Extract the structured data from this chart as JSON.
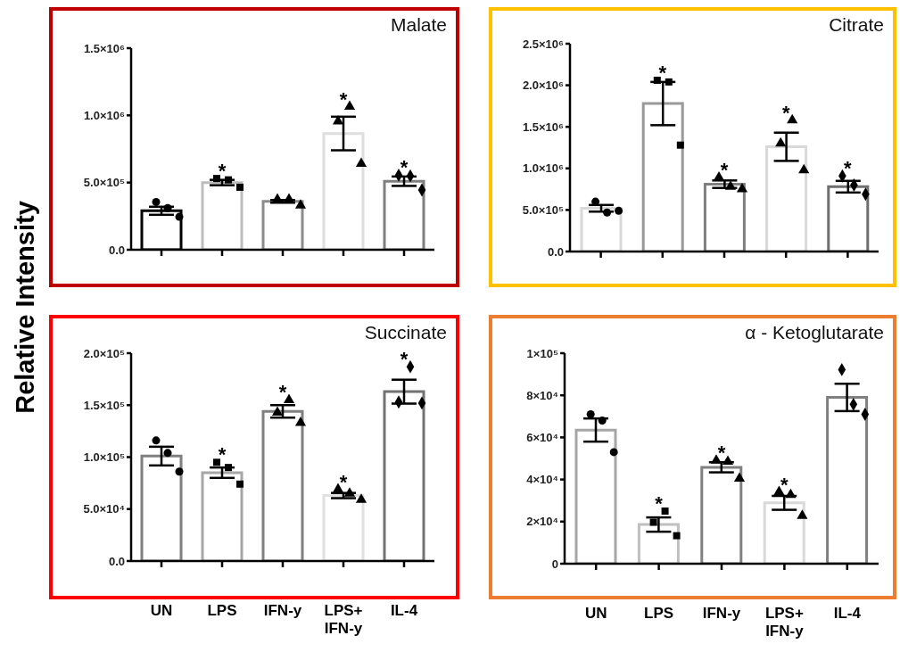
{
  "chart_data": [
    {
      "type": "bar",
      "title": "Malate",
      "ylabel": "Relative Intensity",
      "categories": [
        "UN",
        "LPS",
        "IFN-y",
        "LPS+ IFN-y",
        "IL-4"
      ],
      "tick_labels": "y",
      "ylim": [
        0,
        1500000
      ],
      "yticks": [
        {
          "value": 0,
          "label": "0.0"
        },
        {
          "value": 500000,
          "label": "5.0×10⁵"
        },
        {
          "value": 1000000,
          "label": "1.0×10⁶"
        },
        {
          "value": 1500000,
          "label": "1.5×10⁶"
        }
      ],
      "series": [
        {
          "type": "bar",
          "colors": [
            "#000000",
            "#bdbdbd",
            "#8c8c8c",
            "#dedede",
            "#7f7f7f"
          ],
          "values": [
            290000,
            500000,
            360000,
            865000,
            510000
          ],
          "errors": [
            30000,
            20000,
            10000,
            125000,
            35000
          ]
        },
        {
          "type": "scatter",
          "x": [
            "UN",
            "UN",
            "UN"
          ],
          "values": [
            355000,
            310000,
            245000
          ],
          "color": "#000000",
          "marker": "circle"
        },
        {
          "type": "scatter",
          "x": [
            "LPS",
            "LPS",
            "LPS"
          ],
          "values": [
            530000,
            520000,
            465000
          ],
          "color": "#000000",
          "marker": "square"
        },
        {
          "type": "scatter",
          "x": [
            "IFN-y",
            "IFN-y",
            "IFN-y"
          ],
          "values": [
            375000,
            375000,
            330000
          ],
          "color": "#000000",
          "marker": "triangle"
        },
        {
          "type": "scatter",
          "x": [
            "LPS+ IFN-y",
            "LPS+ IFN-y",
            "LPS+ IFN-y"
          ],
          "values": [
            955000,
            1065000,
            640000
          ],
          "color": "#000000",
          "marker": "triangle"
        },
        {
          "type": "scatter",
          "x": [
            "IL-4",
            "IL-4",
            "IL-4"
          ],
          "values": [
            555000,
            550000,
            445000
          ],
          "color": "#000000",
          "marker": "diamond"
        }
      ],
      "annotations": [
        {
          "text": "*",
          "x": "LPS",
          "y": 530000
        },
        {
          "text": "*",
          "x": "LPS+ IFN-y",
          "y": 1065000
        },
        {
          "text": "*",
          "x": "IL-4",
          "y": 555000
        }
      ]
    },
    {
      "type": "bar",
      "title": "Citrate",
      "categories": [
        "UN",
        "LPS",
        "IFN-y",
        "LPS+ IFN-y",
        "IL-4"
      ],
      "tick_labels": "y",
      "ylim": [
        0,
        2500000
      ],
      "yticks": [
        {
          "value": 0,
          "label": "0.0"
        },
        {
          "value": 500000,
          "label": "5.0×10⁵"
        },
        {
          "value": 1000000,
          "label": "1.0×10⁶"
        },
        {
          "value": 1500000,
          "label": "1.5×10⁶"
        },
        {
          "value": 2000000,
          "label": "2.0×10⁶"
        },
        {
          "value": 2500000,
          "label": "2.5×10⁶"
        }
      ],
      "series": [
        {
          "type": "bar",
          "colors": [
            "#d9d9d9",
            "#999999",
            "#7f7f7f",
            "#d9d9d9",
            "#6f6f6f"
          ],
          "values": [
            520000,
            1780000,
            810000,
            1260000,
            780000
          ],
          "errors": [
            40000,
            260000,
            45000,
            170000,
            70000
          ]
        },
        {
          "type": "scatter",
          "x": [
            "UN",
            "UN",
            "UN"
          ],
          "values": [
            600000,
            470000,
            490000
          ],
          "color": "#000000",
          "marker": "circle"
        },
        {
          "type": "scatter",
          "x": [
            "LPS",
            "LPS",
            "LPS"
          ],
          "values": [
            2060000,
            2040000,
            1280000
          ],
          "color": "#000000",
          "marker": "square"
        },
        {
          "type": "scatter",
          "x": [
            "IFN-y",
            "IFN-y",
            "IFN-y"
          ],
          "values": [
            890000,
            780000,
            750000
          ],
          "color": "#000000",
          "marker": "triangle"
        },
        {
          "type": "scatter",
          "x": [
            "LPS+ IFN-y",
            "LPS+ IFN-y",
            "LPS+ IFN-y"
          ],
          "values": [
            1300000,
            1580000,
            980000
          ],
          "color": "#000000",
          "marker": "triangle"
        },
        {
          "type": "scatter",
          "x": [
            "IL-4",
            "IL-4",
            "IL-4"
          ],
          "values": [
            910000,
            800000,
            690000
          ],
          "color": "#000000",
          "marker": "diamond"
        }
      ],
      "annotations": [
        {
          "text": "*",
          "x": "LPS",
          "y": 2060000
        },
        {
          "text": "*",
          "x": "IFN-y",
          "y": 890000
        },
        {
          "text": "*",
          "x": "LPS+ IFN-y",
          "y": 1580000
        },
        {
          "text": "*",
          "x": "IL-4",
          "y": 910000
        }
      ]
    },
    {
      "type": "bar",
      "title": "Succinate",
      "categories": [
        "UN",
        "LPS",
        "IFN-y",
        "LPS+ IFN-y",
        "IL-4"
      ],
      "ylim": [
        0,
        200000
      ],
      "yticks": [
        {
          "value": 0,
          "label": "0.0"
        },
        {
          "value": 50000,
          "label": "5.0×10⁴"
        },
        {
          "value": 100000,
          "label": "1.0×10⁵"
        },
        {
          "value": 150000,
          "label": "1.5×10⁵"
        },
        {
          "value": 200000,
          "label": "2.0×10⁵"
        }
      ],
      "series": [
        {
          "type": "bar",
          "colors": [
            "#808080",
            "#a6a6a6",
            "#808080",
            "#e0e0e0",
            "#737373"
          ],
          "values": [
            101000,
            85000,
            144000,
            63000,
            163000
          ],
          "errors": [
            9000,
            5000,
            6000,
            2500,
            11500
          ]
        },
        {
          "type": "scatter",
          "x": [
            "UN",
            "UN",
            "UN"
          ],
          "values": [
            116000,
            104000,
            86000
          ],
          "color": "#000000",
          "marker": "circle"
        },
        {
          "type": "scatter",
          "x": [
            "LPS",
            "LPS",
            "LPS"
          ],
          "values": [
            95000,
            90000,
            74000
          ],
          "color": "#000000",
          "marker": "square"
        },
        {
          "type": "scatter",
          "x": [
            "IFN-y",
            "IFN-y",
            "IFN-y"
          ],
          "values": [
            143000,
            155000,
            133000
          ],
          "color": "#000000",
          "marker": "triangle"
        },
        {
          "type": "scatter",
          "x": [
            "LPS+ IFN-y",
            "LPS+ IFN-y",
            "LPS+ IFN-y"
          ],
          "values": [
            69000,
            65000,
            59000
          ],
          "color": "#000000",
          "marker": "triangle"
        },
        {
          "type": "scatter",
          "x": [
            "IL-4",
            "IL-4",
            "IL-4"
          ],
          "values": [
            153000,
            187000,
            152000
          ],
          "color": "#000000",
          "marker": "diamond"
        }
      ],
      "annotations": [
        {
          "text": "*",
          "x": "LPS",
          "y": 95000
        },
        {
          "text": "*",
          "x": "IFN-y",
          "y": 155000
        },
        {
          "text": "*",
          "x": "LPS+ IFN-y",
          "y": 69000
        },
        {
          "text": "*",
          "x": "IL-4",
          "y": 187000
        }
      ]
    },
    {
      "type": "bar",
      "title": "α - Ketoglutarate",
      "categories": [
        "UN",
        "LPS",
        "IFN-y",
        "LPS+ IFN-y",
        "IL-4"
      ],
      "ylim": [
        0,
        100000
      ],
      "yticks": [
        0,
        {
          "value": 20000,
          "label": "2×10⁴"
        },
        {
          "value": 40000,
          "label": "4×10⁴"
        },
        {
          "value": 60000,
          "label": "6×10⁴"
        },
        {
          "value": 80000,
          "label": "8×10⁴"
        },
        {
          "value": 100000,
          "label": "1×10⁵"
        }
      ],
      "series": [
        {
          "type": "bar",
          "colors": [
            "#a6a6a6",
            "#bfbfbf",
            "#808080",
            "#d9d9d9",
            "#808080"
          ],
          "values": [
            63500,
            18600,
            45800,
            28900,
            79000
          ],
          "errors": [
            5500,
            3400,
            2400,
            3300,
            6500
          ]
        },
        {
          "type": "scatter",
          "x": [
            "UN",
            "UN",
            "UN"
          ],
          "values": [
            71000,
            68000,
            53000
          ],
          "color": "#000000",
          "marker": "circle"
        },
        {
          "type": "scatter",
          "x": [
            "LPS",
            "LPS",
            "LPS"
          ],
          "values": [
            19700,
            25000,
            13300
          ],
          "color": "#000000",
          "marker": "square"
        },
        {
          "type": "scatter",
          "x": [
            "IFN-y",
            "IFN-y",
            "IFN-y"
          ],
          "values": [
            49000,
            48500,
            40500
          ],
          "color": "#000000",
          "marker": "triangle"
        },
        {
          "type": "scatter",
          "x": [
            "LPS+ IFN-y",
            "LPS+ IFN-y",
            "LPS+ IFN-y"
          ],
          "values": [
            34100,
            32700,
            22800
          ],
          "color": "#000000",
          "marker": "triangle"
        },
        {
          "type": "scatter",
          "x": [
            "IL-4",
            "IL-4",
            "IL-4"
          ],
          "values": [
            92200,
            75700,
            71000
          ],
          "color": "#000000",
          "marker": "diamond"
        }
      ],
      "annotations": [
        {
          "text": "*",
          "x": "LPS",
          "y": 25000
        },
        {
          "text": "*",
          "x": "IFN-y",
          "y": 49000
        },
        {
          "text": "*",
          "x": "LPS+ IFN-y",
          "y": 34100
        }
      ]
    }
  ]
}
